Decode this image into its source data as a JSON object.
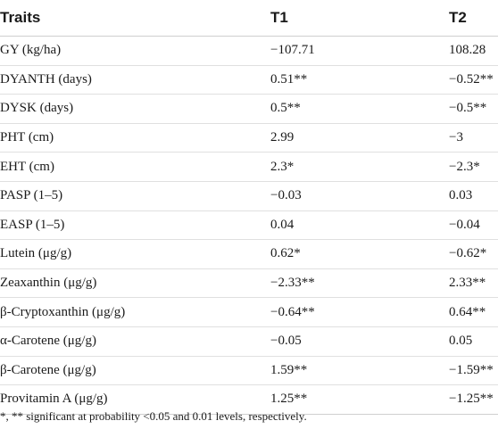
{
  "table": {
    "headers": [
      "Traits",
      "T1",
      "T2"
    ],
    "rows": [
      {
        "trait": "GY (kg/ha)",
        "t1": "−107.71",
        "t2": "108.28"
      },
      {
        "trait": "DYANTH (days)",
        "t1": "0.51**",
        "t2": "−0.52**"
      },
      {
        "trait": "DYSK (days)",
        "t1": "0.5**",
        "t2": "−0.5**"
      },
      {
        "trait": "PHT (cm)",
        "t1": "2.99",
        "t2": "−3"
      },
      {
        "trait": "EHT (cm)",
        "t1": "2.3*",
        "t2": "−2.3*"
      },
      {
        "trait": "PASP (1–5)",
        "t1": "−0.03",
        "t2": "0.03"
      },
      {
        "trait": "EASP (1–5)",
        "t1": "0.04",
        "t2": "−0.04"
      },
      {
        "trait": "Lutein (μg/g)",
        "t1": "0.62*",
        "t2": "−0.62*"
      },
      {
        "trait": "Zeaxanthin (μg/g)",
        "t1": "−2.33**",
        "t2": "2.33**"
      },
      {
        "trait": "β-Cryptoxanthin (μg/g)",
        "t1": "−0.64**",
        "t2": "0.64**"
      },
      {
        "trait": "α-Carotene (μg/g)",
        "t1": "−0.05",
        "t2": "0.05"
      },
      {
        "trait": "β-Carotene (μg/g)",
        "t1": "1.59**",
        "t2": "−1.59**"
      },
      {
        "trait": "Provitamin A (μg/g)",
        "t1": "1.25**",
        "t2": "−1.25**"
      }
    ]
  },
  "footnote": "*, ** significant at probability <0.05 and 0.01 levels, respectively."
}
